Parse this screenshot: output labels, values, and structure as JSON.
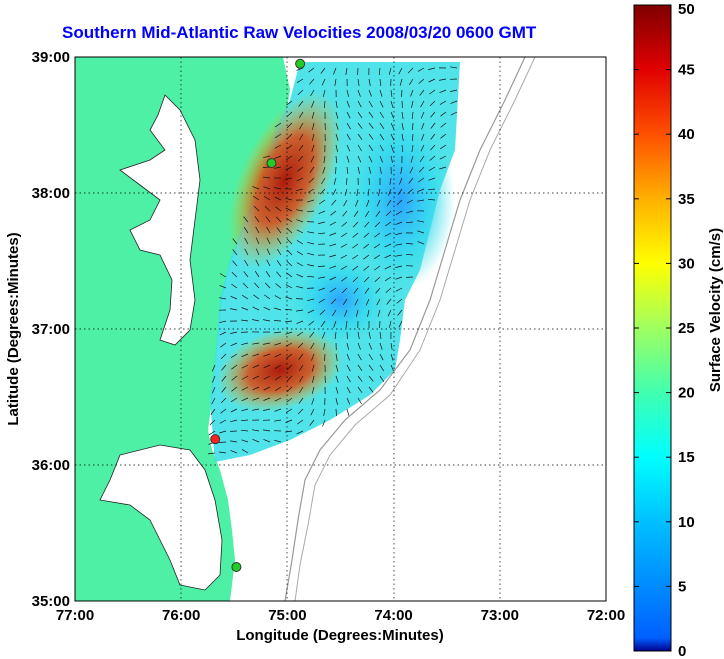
{
  "title": "Southern Mid-Atlantic Raw Velocities 2008/03/20 0600 GMT",
  "map": {
    "xlabel": "Longitude (Degrees:Minutes)",
    "ylabel": "Latitude (Degrees:Minutes)",
    "x_ticks": [
      "77:00",
      "76:00",
      "75:00",
      "74:00",
      "73:00",
      "72:00"
    ],
    "y_ticks": [
      "39:00",
      "38:00",
      "37:00",
      "36:00",
      "35:00"
    ],
    "lon_range": [
      -77,
      -72
    ],
    "lat_range": [
      35,
      39
    ],
    "grid": true,
    "land_color": "#4ef0a6",
    "stations": [
      {
        "name": "",
        "lon": -74.88,
        "lat": 38.95,
        "color": "#22cc22"
      },
      {
        "name": "",
        "lon": -75.15,
        "lat": 38.22,
        "color": "#22cc22"
      },
      {
        "name": "",
        "lon": -75.68,
        "lat": 36.19,
        "color": "#ff2020"
      },
      {
        "name": "",
        "lon": -75.48,
        "lat": 35.25,
        "color": "#22cc22"
      }
    ]
  },
  "colorbar": {
    "label": "Surface Velocity (cm/s)",
    "ticks": [
      "0",
      "5",
      "10",
      "15",
      "20",
      "25",
      "30",
      "35",
      "40",
      "45",
      "50"
    ],
    "min": 0,
    "max": 50,
    "colormap": "jet"
  }
}
